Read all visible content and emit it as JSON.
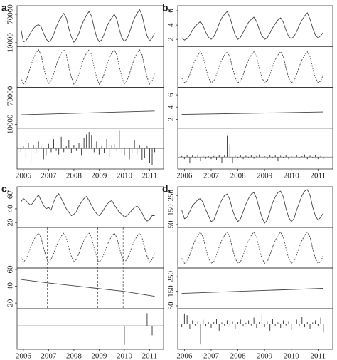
{
  "chart_data": [
    {
      "type": "decomposition",
      "label": "a.",
      "color": "#444",
      "x": [
        2005.9,
        2006.0,
        2006.1,
        2006.2,
        2006.3,
        2006.4,
        2006.5,
        2006.6,
        2006.7,
        2006.8,
        2006.9,
        2007.0,
        2007.1,
        2007.2,
        2007.3,
        2007.4,
        2007.5,
        2007.6,
        2007.7,
        2007.8,
        2007.9,
        2008.0,
        2008.1,
        2008.2,
        2008.3,
        2008.4,
        2008.5,
        2008.6,
        2008.7,
        2008.8,
        2008.9,
        2009.0,
        2009.1,
        2009.2,
        2009.3,
        2009.4,
        2009.5,
        2009.6,
        2009.7,
        2009.8,
        2009.9,
        2010.0,
        2010.1,
        2010.2,
        2010.3,
        2010.4,
        2010.5,
        2010.6,
        2010.7,
        2010.8,
        2010.9,
        2011.0,
        2011.1,
        2011.2
      ],
      "xlim": [
        2005.75,
        2011.55
      ],
      "xticks": [
        2006,
        2007,
        2008,
        2009,
        2010,
        2011
      ],
      "series": [
        {
          "style": "line",
          "ylim": [
            5000,
            85000
          ],
          "yticks": [
            10000,
            70000
          ],
          "values": [
            40000,
            12000,
            14000,
            22000,
            32000,
            40000,
            46000,
            48000,
            44000,
            30000,
            18000,
            12000,
            16000,
            28000,
            43000,
            55000,
            64000,
            72000,
            62000,
            40000,
            22000,
            11000,
            18000,
            30000,
            46000,
            58000,
            68000,
            76000,
            66000,
            42000,
            22000,
            12000,
            16000,
            28000,
            44000,
            54000,
            62000,
            70000,
            60000,
            38000,
            20000,
            13000,
            18000,
            32000,
            48000,
            62000,
            72000,
            80000,
            68000,
            44000,
            24000,
            14000,
            20000,
            30000
          ]
        },
        {
          "style": "dashed",
          "ylim": [
            -30000,
            36000
          ],
          "yticks": [],
          "values": [
            -15000,
            -27000,
            -21000,
            -9000,
            6000,
            18000,
            27000,
            33000,
            24000,
            3000,
            -15000,
            -27000,
            -21000,
            -9000,
            6000,
            18000,
            27000,
            33000,
            24000,
            3000,
            -15000,
            -27000,
            -21000,
            -9000,
            6000,
            18000,
            27000,
            33000,
            24000,
            3000,
            -15000,
            -27000,
            -21000,
            -9000,
            6000,
            18000,
            27000,
            33000,
            24000,
            3000,
            -15000,
            -27000,
            -21000,
            -9000,
            6000,
            18000,
            27000,
            33000,
            24000,
            3000,
            -15000,
            -27000,
            -21000,
            -9000
          ]
        },
        {
          "style": "line",
          "ylim": [
            5000,
            85000
          ],
          "yticks": [
            10000,
            70000
          ],
          "x": [
            2005.9,
            2011.2
          ],
          "values": [
            30000,
            38000
          ]
        },
        {
          "style": "bars",
          "ylim": [
            -16000,
            16000
          ],
          "yticks": [],
          "values": [
            -3000,
            2000,
            -8000,
            5000,
            -12000,
            3000,
            -4000,
            6000,
            2000,
            -9000,
            -6000,
            4000,
            -3000,
            8000,
            -2000,
            -5000,
            10000,
            -3000,
            2000,
            7000,
            -4000,
            3000,
            -2000,
            5000,
            -6000,
            9000,
            12000,
            14000,
            11000,
            -3000,
            6000,
            -5000,
            2000,
            -4000,
            8000,
            -7000,
            3000,
            4000,
            -2000,
            15000,
            -3000,
            -6000,
            5000,
            -9000,
            -4000,
            7000,
            -5000,
            3000,
            -10000,
            -8000,
            2000,
            -12000,
            -14000,
            -3000
          ]
        }
      ]
    },
    {
      "type": "decomposition",
      "label": "b.",
      "color": "#444",
      "x": [
        2005.9,
        2006.0,
        2006.1,
        2006.2,
        2006.3,
        2006.4,
        2006.5,
        2006.6,
        2006.7,
        2006.8,
        2006.9,
        2007.0,
        2007.1,
        2007.2,
        2007.3,
        2007.4,
        2007.5,
        2007.6,
        2007.7,
        2007.8,
        2007.9,
        2008.0,
        2008.1,
        2008.2,
        2008.3,
        2008.4,
        2008.5,
        2008.6,
        2008.7,
        2008.8,
        2008.9,
        2009.0,
        2009.1,
        2009.2,
        2009.3,
        2009.4,
        2009.5,
        2009.6,
        2009.7,
        2009.8,
        2009.9,
        2010.0,
        2010.1,
        2010.2,
        2010.3,
        2010.4,
        2010.5,
        2010.6,
        2010.7,
        2010.8,
        2010.9,
        2011.0,
        2011.1,
        2011.2
      ],
      "xlim": [
        2005.75,
        2011.55
      ],
      "xticks": [
        2006,
        2007,
        2008,
        2009,
        2010,
        2011
      ],
      "series": [
        {
          "style": "line",
          "ylim": [
            1.2,
            6.5
          ],
          "yticks": [
            2,
            4,
            6
          ],
          "values": [
            2.2,
            1.9,
            2.1,
            2.6,
            3.3,
            3.8,
            4.2,
            4.5,
            3.9,
            3.0,
            2.3,
            2.0,
            2.4,
            3.2,
            4.2,
            5.0,
            5.5,
            5.9,
            5.1,
            3.8,
            2.6,
            2.0,
            2.3,
            3.0,
            3.7,
            4.4,
            4.8,
            5.1,
            4.5,
            3.4,
            2.5,
            2.0,
            2.2,
            2.9,
            3.6,
            4.2,
            4.7,
            5.0,
            4.4,
            3.3,
            2.4,
            2.1,
            2.4,
            3.1,
            4.0,
            4.7,
            5.3,
            5.7,
            4.8,
            3.6,
            2.6,
            2.2,
            2.5,
            3.0
          ]
        },
        {
          "style": "dashed",
          "ylim": [
            -1.5,
            2
          ],
          "yticks": [],
          "values": [
            -0.75,
            -1.2,
            -1.05,
            -0.45,
            0.3,
            0.9,
            1.35,
            1.65,
            1.2,
            0.15,
            -0.75,
            -1.2,
            -1.05,
            -0.45,
            0.3,
            0.9,
            1.35,
            1.65,
            1.2,
            0.15,
            -0.75,
            -1.2,
            -1.05,
            -0.45,
            0.3,
            0.9,
            1.35,
            1.65,
            1.2,
            0.15,
            -0.75,
            -1.2,
            -1.05,
            -0.45,
            0.3,
            0.9,
            1.35,
            1.65,
            1.2,
            0.15,
            -0.75,
            -1.2,
            -1.05,
            -0.45,
            0.3,
            0.9,
            1.35,
            1.65,
            1.2,
            0.15,
            -0.75,
            -1.2,
            -1.05,
            -0.45
          ]
        },
        {
          "style": "line",
          "ylim": [
            0.8,
            7
          ],
          "yticks": [
            2,
            4,
            6
          ],
          "x": [
            2005.9,
            2011.2
          ],
          "values": [
            2.8,
            3.2
          ]
        },
        {
          "style": "bars",
          "ylim": [
            -0.5,
            1.3
          ],
          "yticks": [],
          "values": [
            0.05,
            -0.1,
            0.08,
            -0.3,
            0.1,
            -0.05,
            0.12,
            -0.2,
            0.06,
            -0.08,
            0.04,
            -0.1,
            0.05,
            -0.15,
            0.1,
            -0.3,
            0.08,
            1.0,
            0.6,
            -0.3,
            0.1,
            -0.05,
            0.08,
            -0.1,
            0.06,
            -0.04,
            0.1,
            -0.08,
            0.05,
            0.12,
            -0.06,
            0.04,
            -0.1,
            0.08,
            -0.05,
            0.1,
            -0.2,
            0.06,
            -0.04,
            0.08,
            -0.1,
            0.05,
            -0.08,
            0.1,
            -0.06,
            0.04,
            0.12,
            -0.1,
            0.06,
            -0.05,
            0.08,
            -0.1,
            0.05,
            -0.08
          ]
        }
      ]
    },
    {
      "type": "decomposition",
      "label": "c.",
      "color": "#444",
      "x": [
        2005.9,
        2006.0,
        2006.1,
        2006.2,
        2006.3,
        2006.4,
        2006.5,
        2006.6,
        2006.7,
        2006.8,
        2006.9,
        2007.0,
        2007.1,
        2007.2,
        2007.3,
        2007.4,
        2007.5,
        2007.6,
        2007.7,
        2007.8,
        2007.9,
        2008.0,
        2008.1,
        2008.2,
        2008.3,
        2008.4,
        2008.5,
        2008.6,
        2008.7,
        2008.8,
        2008.9,
        2009.0,
        2009.1,
        2009.2,
        2009.3,
        2009.4,
        2009.5,
        2009.6,
        2009.7,
        2009.8,
        2009.9,
        2010.0,
        2010.1,
        2010.2,
        2010.3,
        2010.4,
        2010.5,
        2010.6,
        2010.7,
        2010.8,
        2010.9,
        2011.0,
        2011.1,
        2011.2
      ],
      "xlim": [
        2005.75,
        2011.55
      ],
      "xticks": [
        2006,
        2007,
        2008,
        2009,
        2010,
        2011
      ],
      "breaks": [
        2006.95,
        2007.85,
        2008.95,
        2009.95
      ],
      "series": [
        {
          "style": "line",
          "ylim": [
            15,
            70
          ],
          "yticks": [
            20,
            40,
            60
          ],
          "values": [
            50,
            55,
            52,
            48,
            45,
            50,
            56,
            60,
            52,
            45,
            40,
            42,
            38,
            50,
            58,
            62,
            55,
            48,
            40,
            35,
            30,
            32,
            36,
            44,
            50,
            55,
            58,
            52,
            45,
            38,
            33,
            30,
            34,
            40,
            46,
            50,
            52,
            46,
            40,
            35,
            32,
            28,
            30,
            34,
            38,
            42,
            44,
            40,
            34,
            26,
            22,
            25,
            30,
            30
          ]
        },
        {
          "style": "dashed",
          "ylim": [
            -12,
            14
          ],
          "yticks": [],
          "values": [
            -5,
            -9,
            -7,
            -3,
            2,
            6,
            9,
            11,
            8,
            1,
            -5,
            -9,
            -7,
            -3,
            2,
            6,
            9,
            11,
            8,
            1,
            -5,
            -9,
            -7,
            -3,
            2,
            6,
            9,
            11,
            8,
            1,
            -5,
            -9,
            -7,
            -3,
            2,
            6,
            9,
            11,
            8,
            1,
            -5,
            -9,
            -7,
            -3,
            2,
            6,
            9,
            11,
            8,
            1,
            -5,
            -9,
            -7,
            -3
          ]
        },
        {
          "style": "line",
          "ylim": [
            15,
            60
          ],
          "yticks": [
            20,
            40,
            60
          ],
          "x": [
            2005.9,
            2006.95,
            2006.95,
            2009.95,
            2009.95,
            2011.2
          ],
          "values": [
            48,
            44,
            44,
            34,
            34,
            28
          ]
        },
        {
          "style": "bars",
          "ylim": [
            -14,
            10
          ],
          "yticks": [],
          "values": [
            0,
            0,
            0,
            0,
            0,
            0,
            0,
            0,
            0,
            0,
            0,
            0,
            0,
            0,
            0,
            0,
            0,
            0,
            0,
            0,
            0,
            0,
            0,
            0,
            0,
            0,
            0,
            0,
            0,
            0,
            0,
            0,
            0,
            0,
            0,
            0,
            0,
            0,
            0,
            0,
            0,
            -12,
            0,
            0,
            0,
            0,
            0,
            0,
            0,
            0,
            8,
            0,
            -6,
            0
          ]
        }
      ]
    },
    {
      "type": "decomposition",
      "label": "d.",
      "color": "#444",
      "x": [
        2005.9,
        2006.0,
        2006.1,
        2006.2,
        2006.3,
        2006.4,
        2006.5,
        2006.6,
        2006.7,
        2006.8,
        2006.9,
        2007.0,
        2007.1,
        2007.2,
        2007.3,
        2007.4,
        2007.5,
        2007.6,
        2007.7,
        2007.8,
        2007.9,
        2008.0,
        2008.1,
        2008.2,
        2008.3,
        2008.4,
        2008.5,
        2008.6,
        2008.7,
        2008.8,
        2008.9,
        2009.0,
        2009.1,
        2009.2,
        2009.3,
        2009.4,
        2009.5,
        2009.6,
        2009.7,
        2009.8,
        2009.9,
        2010.0,
        2010.1,
        2010.2,
        2010.3,
        2010.4,
        2010.5,
        2010.6,
        2010.7,
        2010.8,
        2010.9,
        2011.0,
        2011.1,
        2011.2
      ],
      "xlim": [
        2005.75,
        2011.55
      ],
      "xticks": [
        2006,
        2007,
        2008,
        2009,
        2010,
        2011
      ],
      "series": [
        {
          "style": "line",
          "ylim": [
            40,
            300
          ],
          "yticks": [
            50,
            150,
            250
          ],
          "values": [
            150,
            90,
            100,
            140,
            180,
            200,
            220,
            230,
            200,
            150,
            110,
            70,
            80,
            130,
            180,
            220,
            250,
            260,
            220,
            150,
            100,
            70,
            90,
            140,
            190,
            230,
            260,
            270,
            230,
            160,
            100,
            60,
            80,
            140,
            200,
            240,
            270,
            280,
            240,
            160,
            100,
            70,
            90,
            150,
            200,
            250,
            280,
            290,
            250,
            170,
            110,
            80,
            100,
            130
          ]
        },
        {
          "style": "dashed",
          "ylim": [
            -100,
            130
          ],
          "yticks": [],
          "values": [
            -50,
            -80,
            -70,
            -30,
            20,
            60,
            90,
            110,
            80,
            10,
            -50,
            -80,
            -70,
            -30,
            20,
            60,
            90,
            110,
            80,
            10,
            -50,
            -80,
            -70,
            -30,
            20,
            60,
            90,
            110,
            80,
            10,
            -50,
            -80,
            -70,
            -30,
            20,
            60,
            90,
            110,
            80,
            10,
            -50,
            -80,
            -70,
            -30,
            20,
            60,
            90,
            110,
            80,
            10,
            -50,
            -80,
            -70,
            -30
          ]
        },
        {
          "style": "line",
          "ylim": [
            40,
            300
          ],
          "yticks": [
            50,
            150,
            250
          ],
          "x": [
            2005.9,
            2011.2
          ],
          "values": [
            135,
            170
          ]
        },
        {
          "style": "bars",
          "ylim": [
            -70,
            40
          ],
          "yticks": [],
          "values": [
            -10,
            30,
            25,
            -15,
            10,
            -5,
            8,
            -60,
            12,
            -8,
            5,
            -12,
            6,
            15,
            -20,
            4,
            -6,
            10,
            -3,
            8,
            -15,
            5,
            12,
            -8,
            3,
            10,
            -5,
            18,
            -12,
            6,
            30,
            -10,
            8,
            -20,
            15,
            -6,
            4,
            -12,
            10,
            -5,
            8,
            -18,
            5,
            12,
            -8,
            20,
            -10,
            6,
            -15,
            4,
            10,
            -6,
            18,
            -25
          ]
        }
      ]
    }
  ]
}
